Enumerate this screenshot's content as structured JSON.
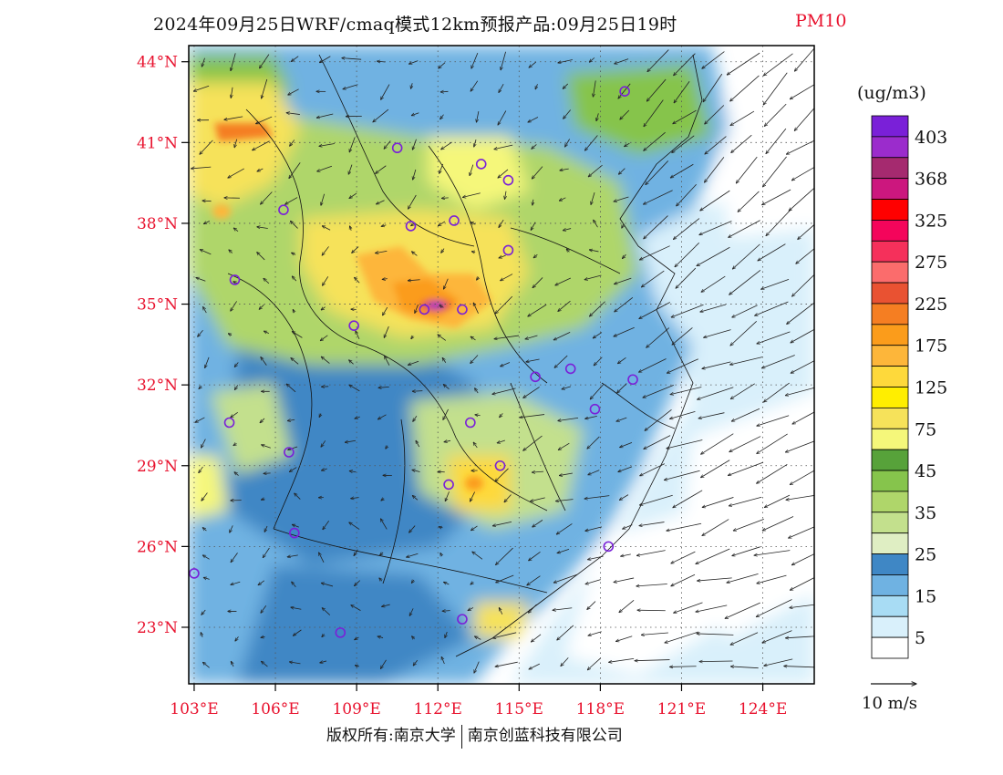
{
  "title": {
    "main": "2024年09月25日WRF/cmaq模式12km预报产品:09月25日19时",
    "variable": "PM10"
  },
  "map": {
    "lat_labels": [
      "44°N",
      "41°N",
      "38°N",
      "35°N",
      "32°N",
      "29°N",
      "26°N",
      "23°N"
    ],
    "lon_labels": [
      "103°E",
      "106°E",
      "109°E",
      "112°E",
      "115°E",
      "118°E",
      "121°E",
      "124°E"
    ],
    "lat_values": [
      44,
      41,
      38,
      35,
      32,
      29,
      26,
      23
    ],
    "lon_values": [
      103,
      106,
      109,
      112,
      115,
      118,
      121,
      124
    ],
    "lat_range": [
      20.9,
      44.6
    ],
    "lon_range": [
      102.8,
      125.9
    ],
    "cities": [
      [
        118.9,
        42.9
      ],
      [
        110.5,
        40.8
      ],
      [
        113.6,
        40.2
      ],
      [
        114.6,
        39.6
      ],
      [
        106.3,
        38.5
      ],
      [
        111.0,
        37.9
      ],
      [
        112.6,
        38.1
      ],
      [
        114.6,
        37.0
      ],
      [
        104.5,
        35.9
      ],
      [
        111.5,
        34.8
      ],
      [
        112.9,
        34.8
      ],
      [
        108.9,
        34.2
      ],
      [
        115.6,
        32.3
      ],
      [
        116.9,
        32.6
      ],
      [
        119.2,
        32.2
      ],
      [
        104.3,
        30.6
      ],
      [
        113.2,
        30.6
      ],
      [
        117.8,
        31.1
      ],
      [
        106.5,
        29.5
      ],
      [
        114.3,
        29.0
      ],
      [
        112.4,
        28.3
      ],
      [
        106.7,
        26.5
      ],
      [
        118.3,
        26.0
      ],
      [
        103.0,
        25.0
      ],
      [
        108.4,
        22.8
      ],
      [
        112.9,
        23.3
      ]
    ]
  },
  "colorbar": {
    "unit": "(ug/m3)",
    "colors": [
      "#ffffff",
      "#d9f0fb",
      "#a8dcf4",
      "#6fb2e2",
      "#3f87c5",
      "#dfeec3",
      "#c3e08d",
      "#afd66a",
      "#86c44c",
      "#57a23a",
      "#f5f77a",
      "#f6e25a",
      "#ffee00",
      "#fed93b",
      "#fdb63a",
      "#fb9c1b",
      "#f57e22",
      "#e95232",
      "#fb6c6c",
      "#f5305b",
      "#f4055b",
      "#ff0000",
      "#cc177e",
      "#a52a6f",
      "#9b2ccc",
      "#7a20d8"
    ],
    "labels": [
      "5",
      "15",
      "25",
      "35",
      "45",
      "75",
      "125",
      "175",
      "225",
      "275",
      "325",
      "368",
      "403"
    ]
  },
  "wind_legend": {
    "label": "10 m/s"
  },
  "copyright": {
    "left": "版权所有:南京大学",
    "right": "南京创蓝科技有限公司"
  }
}
